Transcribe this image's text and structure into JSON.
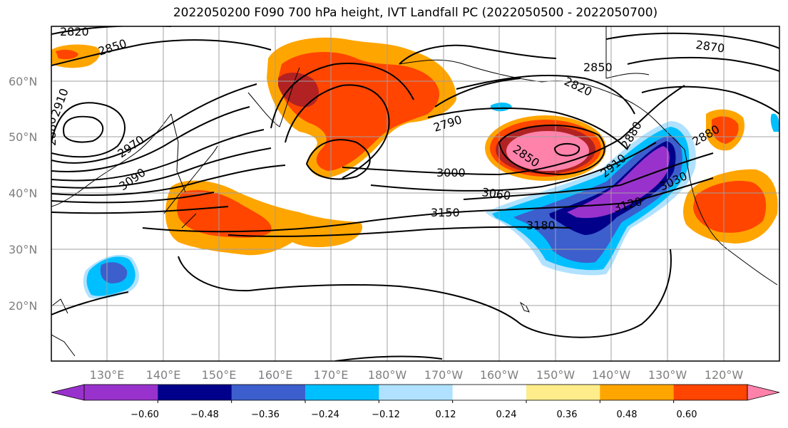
{
  "title": "2022050200 F090 700 hPa height, IVT Landfall PC (2022050500 - 2022050700)",
  "longitude_labels": [
    "130°E",
    "140°E",
    "150°E",
    "160°E",
    "170°E",
    "180°W",
    "170°W",
    "160°W",
    "150°W",
    "140°W",
    "130°W",
    "120°W"
  ],
  "latitude_labels": [
    "60°N",
    "50°N",
    "40°N",
    "30°N",
    "20°N"
  ],
  "contour_labels": [
    "2820",
    "2850",
    "2910",
    "2880",
    "2970",
    "3090",
    "2790",
    "2820",
    "2850",
    "3000",
    "3060",
    "3150",
    "3180",
    "2880",
    "2910",
    "3030",
    "3120",
    "2870",
    "2850",
    "2880"
  ],
  "colorbar": {
    "ticks": [
      "−0.60",
      "−0.48",
      "−0.36",
      "−0.24",
      "−0.12",
      "0.12",
      "0.24",
      "0.36",
      "0.48",
      "0.60"
    ],
    "colors": [
      "#9932cc",
      "#00008b",
      "#3c5fcd",
      "#00bfff",
      "#b0e2ff",
      "#ffffff",
      "#ffec8b",
      "#ffa500",
      "#ff4500",
      "#b22222",
      "#ff82ab"
    ]
  },
  "colors": {
    "orange": "#ffa500",
    "red_orange": "#ff4500",
    "dark_red": "#b22222",
    "pink": "#ff82ab",
    "purple": "#9932cc",
    "navy": "#00008b",
    "royal_blue": "#3c5fcd",
    "sky_blue": "#00bfff",
    "light_blue": "#b0e2ff",
    "grid": "#a0a0a0"
  }
}
